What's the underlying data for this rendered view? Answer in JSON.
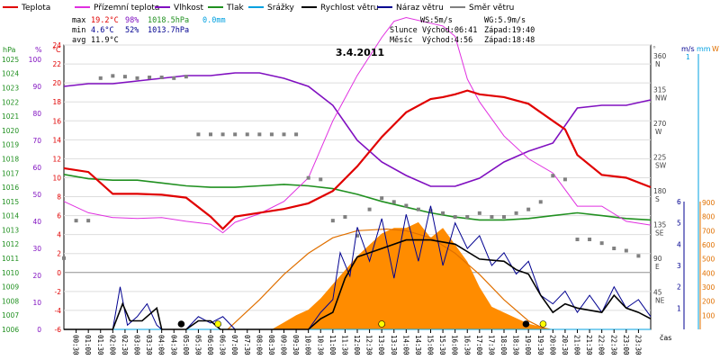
{
  "legend": [
    {
      "label": "Teplota",
      "color": "#e00000"
    },
    {
      "label": "Přízemní teplota",
      "color": "#e030e0"
    },
    {
      "label": "Vlhkost",
      "color": "#8010c0"
    },
    {
      "label": "Tlak",
      "color": "#209020"
    },
    {
      "label": "Srážky",
      "color": "#00a0e0"
    },
    {
      "label": "Rychlost větru",
      "color": "#000000"
    },
    {
      "label": "Náraz větru",
      "color": "#000090"
    },
    {
      "label": "Směr větru",
      "color": "#808080"
    }
  ],
  "stats": {
    "max_label": "max",
    "max_temp": "19.2°C",
    "max_hum": "98%",
    "max_press": "1018.5hPa",
    "rain": "0.0mm",
    "min_label": "min",
    "min_temp": "4.6°C",
    "min_hum": "52%",
    "min_press": "1013.7hPa",
    "avg_label": "avg",
    "avg_temp": "11.9°C"
  },
  "wind_info": {
    "ws": "WS:5m/s",
    "wg": "WG:5.9m/s"
  },
  "sun": {
    "label": "Slunce",
    "rise": "Východ:06:41",
    "set": "Západ:19:40"
  },
  "moon": {
    "label": "Měsíc",
    "rise": "Východ:4:56",
    "set": "Západ:18:48"
  },
  "axis_units": {
    "hpa": "hPa",
    "pct": "%",
    "degc": "°C",
    "deg": "°",
    "ms": "m/s",
    "mm": "mm",
    "wm2": "W",
    "cas": "čas"
  },
  "chart_data": {
    "type": "line",
    "title": "3.4.2011",
    "x_ticks": [
      "00:30",
      "01:00",
      "01:30",
      "02:00",
      "02:30",
      "03:00",
      "03:30",
      "04:00",
      "04:30",
      "05:00",
      "05:30",
      "06:00",
      "06:30",
      "07:00",
      "07:30",
      "08:00",
      "08:30",
      "09:00",
      "09:30",
      "10:00",
      "10:30",
      "11:00",
      "11:30",
      "12:00",
      "12:30",
      "13:00",
      "13:30",
      "14:00",
      "14:30",
      "15:00",
      "15:30",
      "16:00",
      "16:30",
      "17:00",
      "17:30",
      "18:00",
      "18:30",
      "19:00",
      "19:30",
      "20:00",
      "20:30",
      "21:00",
      "21:30",
      "22:00",
      "22:30",
      "23:00",
      "23:30"
    ],
    "temp_ticks": [
      "-6",
      "-4",
      "-2",
      "0",
      "2",
      "4",
      "6",
      "8",
      "10",
      "12",
      "14",
      "16",
      "18",
      "20",
      "22",
      "24"
    ],
    "hum_ticks": [
      "0",
      "10",
      "20",
      "30",
      "40",
      "50",
      "60",
      "70",
      "80",
      "90",
      "100"
    ],
    "press_ticks": [
      "1006",
      "1007",
      "1008",
      "1009",
      "1010",
      "1011",
      "1012",
      "1013",
      "1014",
      "1015",
      "1016",
      "1017",
      "1018",
      "1019",
      "1020",
      "1021",
      "1022",
      "1023",
      "1024",
      "1025"
    ],
    "dir_ticks": [
      {
        "deg": "45",
        "dir": "NE"
      },
      {
        "deg": "90",
        "dir": "E"
      },
      {
        "deg": "135",
        "dir": "SE"
      },
      {
        "deg": "180",
        "dir": "S"
      },
      {
        "deg": "225",
        "dir": "SW"
      },
      {
        "deg": "270",
        "dir": "W"
      },
      {
        "deg": "315",
        "dir": "NW"
      },
      {
        "deg": "360",
        "dir": "N"
      }
    ],
    "wind_ticks": [
      "1",
      "2",
      "3",
      "4",
      "5",
      "6"
    ],
    "rain_top": "1",
    "solar_ticks": [
      "100",
      "200",
      "300",
      "400",
      "500",
      "600",
      "700",
      "800",
      "900"
    ],
    "temperature": {
      "x": [
        0,
        1,
        2,
        3,
        4,
        5,
        6,
        6.5,
        7,
        8,
        9,
        10,
        11,
        12,
        13,
        14,
        15,
        15.5,
        16,
        16.5,
        17,
        18,
        19,
        20,
        20.5,
        21,
        22,
        23,
        24
      ],
      "y": [
        11,
        10.6,
        8.3,
        8.3,
        8.2,
        7.9,
        5.9,
        4.6,
        5.9,
        6.3,
        6.7,
        7.3,
        8.6,
        11.2,
        14.3,
        16.9,
        18.3,
        18.5,
        18.8,
        19.2,
        18.8,
        18.5,
        17.8,
        16.0,
        15.1,
        12.4,
        10.3,
        10.0,
        9.0
      ]
    },
    "ground_temperature": {
      "x": [
        0,
        1,
        2,
        3,
        4,
        5,
        6,
        6.5,
        7,
        8,
        9,
        10,
        11,
        12,
        13,
        13.5,
        14,
        15,
        15.5,
        16,
        16.5,
        17,
        18,
        19,
        20,
        21,
        22,
        23,
        24
      ],
      "y": [
        7.5,
        6.3,
        5.8,
        5.7,
        5.8,
        5.4,
        5.1,
        4.2,
        5.3,
        6.2,
        7.5,
        10,
        16,
        20.8,
        24.8,
        26.5,
        26.9,
        26.3,
        26.0,
        24.9,
        20.4,
        18.0,
        14.4,
        12.0,
        10.5,
        7.0,
        7.0,
        5.4,
        5.0
      ]
    },
    "humidity": {
      "x": [
        0,
        1,
        2,
        3,
        4,
        5,
        6,
        7,
        8,
        9,
        10,
        11,
        12,
        13,
        14,
        15,
        16,
        17,
        18,
        19,
        20,
        21,
        22,
        23,
        24
      ],
      "y": [
        90,
        91,
        91,
        92,
        93,
        94,
        94,
        95,
        95,
        93,
        90,
        83,
        70,
        62,
        57,
        53,
        53,
        56,
        62,
        66,
        69,
        82,
        83,
        83,
        85
      ]
    },
    "pressure": {
      "x": [
        0,
        1,
        2,
        3,
        4,
        5,
        6,
        7,
        8,
        9,
        10,
        11,
        12,
        13,
        14,
        15,
        16,
        17,
        18,
        19,
        20,
        21,
        22,
        23,
        24
      ],
      "y": [
        1016.9,
        1016.6,
        1016.5,
        1016.5,
        1016.3,
        1016.1,
        1016.0,
        1016.0,
        1016.1,
        1016.2,
        1016.1,
        1015.9,
        1015.5,
        1015.0,
        1014.6,
        1014.2,
        1013.9,
        1013.7,
        1013.7,
        1013.8,
        1014.0,
        1014.2,
        1014.0,
        1013.8,
        1013.7
      ]
    },
    "wind_speed": {
      "x": [
        0,
        2,
        2.4,
        2.7,
        3.2,
        3.8,
        4,
        5,
        5.5,
        6,
        6.4,
        7,
        8,
        9,
        10,
        10.5,
        11,
        11.5,
        12,
        13,
        14,
        15,
        16,
        17,
        18,
        18.5,
        19,
        19.5,
        20,
        20.5,
        21,
        22,
        22.5,
        23,
        23.5,
        24
      ],
      "y": [
        0,
        0,
        1.2,
        0.4,
        0.4,
        1.0,
        0,
        0,
        0.4,
        0.4,
        0,
        0,
        0,
        0,
        0,
        0.5,
        0.8,
        2.4,
        3.4,
        3.8,
        4.2,
        4.2,
        4.0,
        3.3,
        3.2,
        2.8,
        2.6,
        1.6,
        0.8,
        1.2,
        1.0,
        0.8,
        1.6,
        1.0,
        0.8,
        0.5
      ]
    },
    "wind_gust": {
      "x": [
        0,
        2,
        2.3,
        2.6,
        3,
        3.4,
        3.8,
        4,
        5,
        5.5,
        6,
        6.5,
        7,
        8,
        9,
        10,
        10.5,
        11,
        11.3,
        11.7,
        12,
        12.5,
        13,
        13.5,
        14,
        14.5,
        15,
        15.5,
        16,
        16.5,
        17,
        17.5,
        18,
        18.5,
        19,
        19.5,
        20,
        20.5,
        21,
        21.5,
        22,
        22.5,
        23,
        23.5,
        24
      ],
      "y": [
        0,
        0,
        2.0,
        0.2,
        0.6,
        1.2,
        0.2,
        0,
        0,
        0.6,
        0.3,
        0.6,
        0,
        0,
        0,
        0,
        0.8,
        1.4,
        3.6,
        2.5,
        4.8,
        3.2,
        5.2,
        2.4,
        5.4,
        3.2,
        5.8,
        3.0,
        5.0,
        3.8,
        4.4,
        3.0,
        3.6,
        2.6,
        3.2,
        1.6,
        1.2,
        1.8,
        0.8,
        1.6,
        0.8,
        2.0,
        1.0,
        1.4,
        0.6
      ]
    },
    "wind_direction": {
      "x": [
        0,
        0.5,
        1,
        1.5,
        2,
        2.5,
        3,
        3.5,
        4,
        4.5,
        5,
        5.5,
        6,
        6.5,
        7,
        7.5,
        8,
        8.5,
        9,
        9.5,
        10,
        10.5,
        11,
        11.5,
        12,
        12.5,
        13,
        13.5,
        14,
        14.5,
        15,
        15.5,
        16,
        16.5,
        17,
        17.5,
        18,
        18.5,
        19,
        19.5,
        20,
        20.5,
        21,
        21.5,
        22,
        22.5,
        23,
        23.5
      ],
      "y": [
        95,
        145,
        145,
        335,
        338,
        337,
        335,
        336,
        336,
        335,
        337,
        260,
        260,
        260,
        260,
        260,
        260,
        260,
        260,
        260,
        202,
        200,
        145,
        150,
        125,
        160,
        175,
        170,
        165,
        160,
        158,
        155,
        150,
        150,
        155,
        150,
        150,
        155,
        160,
        170,
        205,
        200,
        120,
        120,
        115,
        108,
        105,
        98
      ]
    },
    "solar": {
      "x": [
        0,
        8.5,
        9,
        9.5,
        10,
        10.5,
        11,
        11.5,
        12,
        12.5,
        13,
        13.5,
        14,
        14.5,
        15,
        15.5,
        16,
        16.5,
        17,
        17.5,
        18,
        18.5,
        19,
        19.5,
        20,
        24
      ],
      "y": [
        0,
        0,
        50,
        100,
        140,
        220,
        320,
        420,
        520,
        600,
        680,
        720,
        720,
        760,
        650,
        720,
        600,
        480,
        300,
        160,
        120,
        80,
        40,
        20,
        0,
        0
      ]
    },
    "solar_theoretical": {
      "x": [
        6.7,
        8,
        9,
        10,
        11,
        12,
        13,
        13.2,
        14,
        15,
        16,
        17,
        18,
        19,
        19.7
      ],
      "y": [
        0,
        210,
        390,
        540,
        650,
        700,
        710,
        712,
        700,
        650,
        540,
        390,
        210,
        60,
        0
      ]
    },
    "rain": {
      "x": [
        0,
        24
      ],
      "y": [
        0,
        0
      ]
    },
    "markers": [
      {
        "x": 4.8,
        "color": "#000000"
      },
      {
        "x": 6.3,
        "color": "#ffff00"
      },
      {
        "x": 13.0,
        "color": "#ffff00"
      },
      {
        "x": 18.9,
        "color": "#000000"
      },
      {
        "x": 19.6,
        "color": "#ffff00"
      }
    ]
  }
}
